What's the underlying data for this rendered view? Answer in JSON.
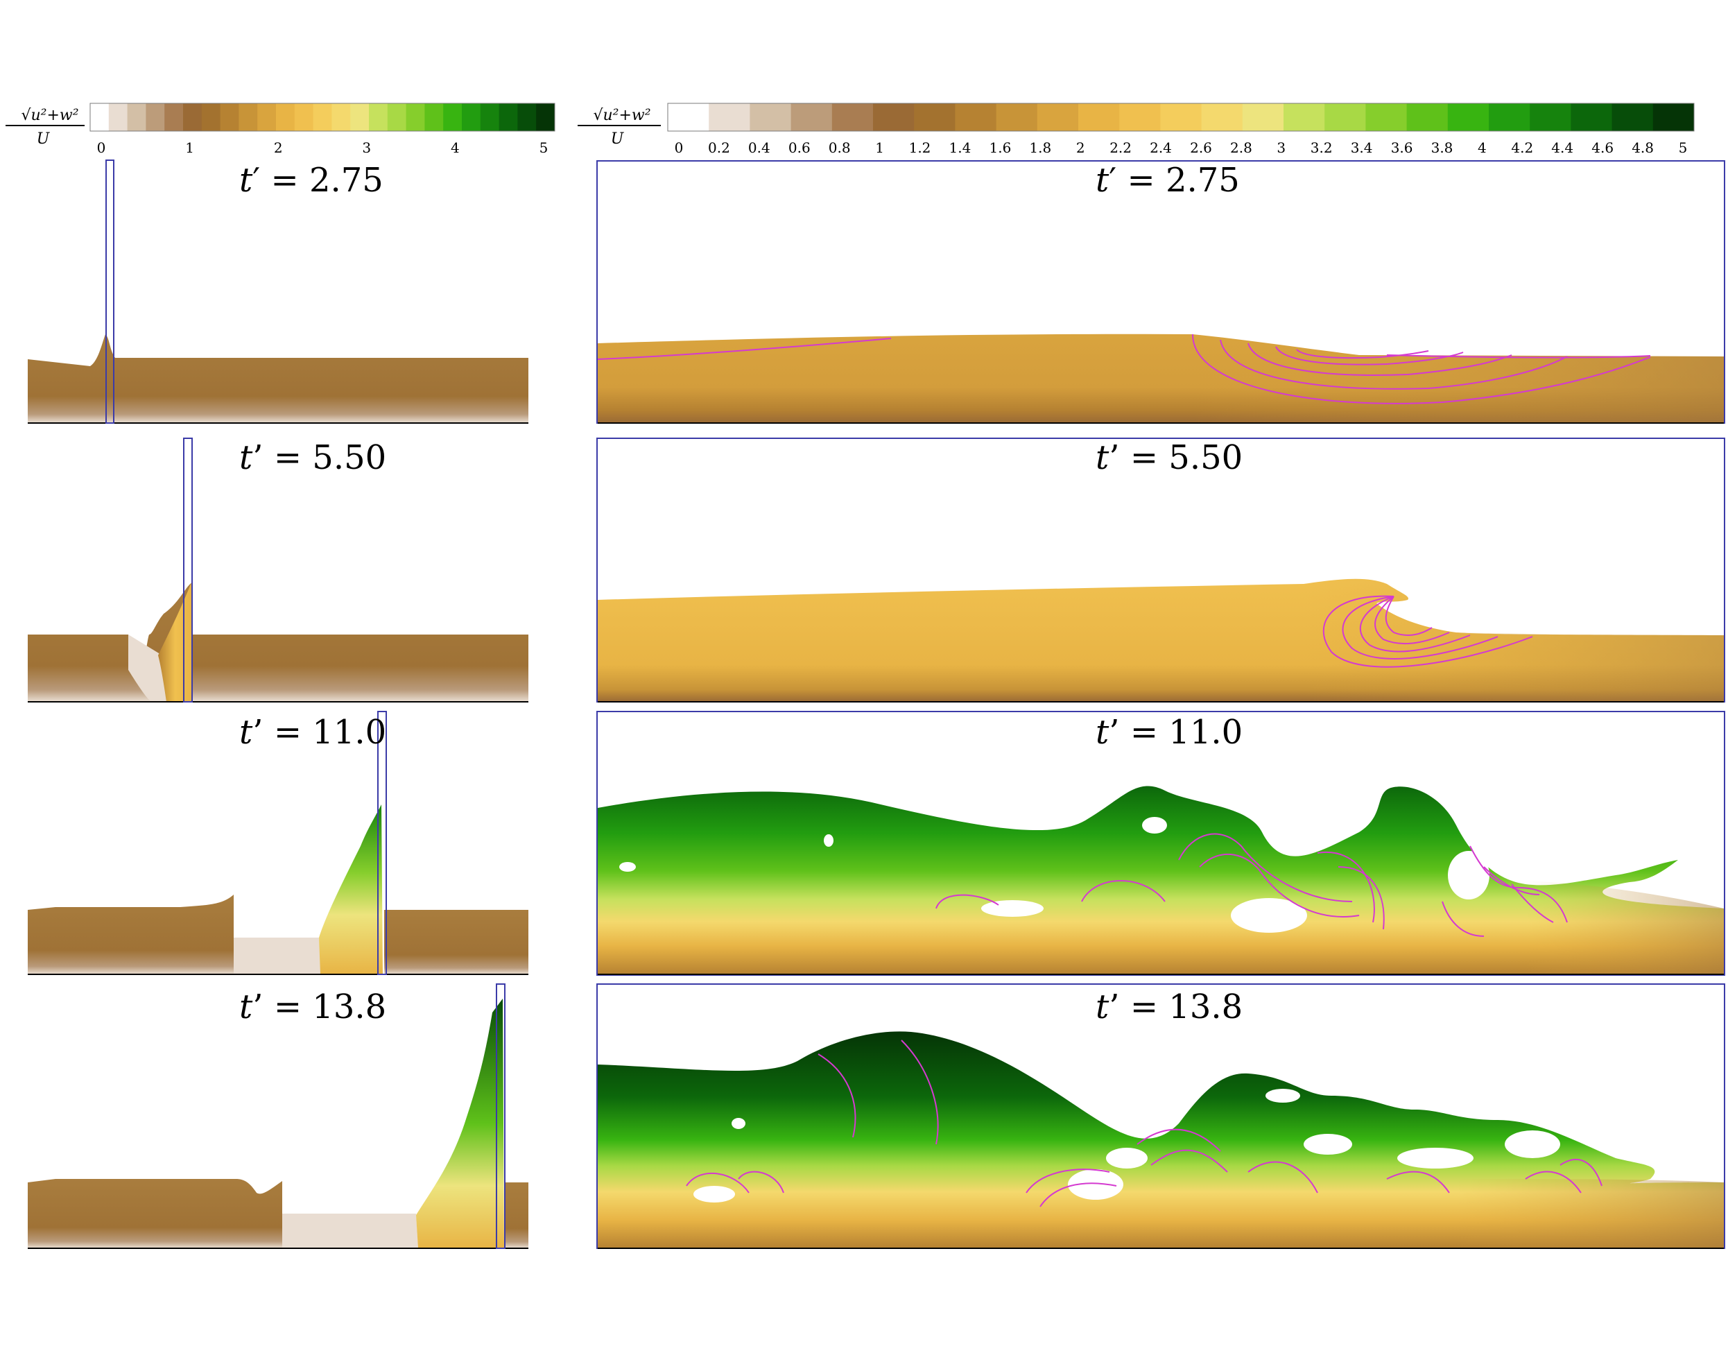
{
  "figure": {
    "colorbar_label": {
      "numerator": "√u²+w²",
      "denominator": "U"
    },
    "left_colorbar": {
      "ticks": [
        "0",
        "1",
        "2",
        "3",
        "4",
        "5"
      ]
    },
    "right_colorbar": {
      "ticks": [
        "0",
        "0.2",
        "0.4",
        "0.6",
        "0.8",
        "1",
        "1.2",
        "1.4",
        "1.6",
        "1.8",
        "2",
        "2.2",
        "2.4",
        "2.6",
        "2.8",
        "3",
        "3.2",
        "3.4",
        "3.6",
        "3.8",
        "4",
        "4.2",
        "4.4",
        "4.6",
        "4.8",
        "5"
      ]
    },
    "colormap": [
      "#ffffff",
      "#e9ddd2",
      "#d3bfa6",
      "#bc9c7a",
      "#a97d52",
      "#9a6a35",
      "#a3722f",
      "#b68232",
      "#c89438",
      "#d9a43e",
      "#e8b445",
      "#f0c04f",
      "#f4cd5c",
      "#f4d96d",
      "#ede47e",
      "#c6e15d",
      "#a8d945",
      "#86ce2c",
      "#5fc11a",
      "#38b411",
      "#229d10",
      "#16830d",
      "#0c670b",
      "#074d09",
      "#053406"
    ],
    "panels": [
      {
        "time_var": "t",
        "prime": "′",
        "eq": " = ",
        "value": "2.75"
      },
      {
        "time_var": "t",
        "prime": "’",
        "eq": " = ",
        "value": "5.50"
      },
      {
        "time_var": "t",
        "prime": "’",
        "eq": " = ",
        "value": "11.0"
      },
      {
        "time_var": "t",
        "prime": "’",
        "eq": " = ",
        "value": "13.8"
      }
    ]
  }
}
